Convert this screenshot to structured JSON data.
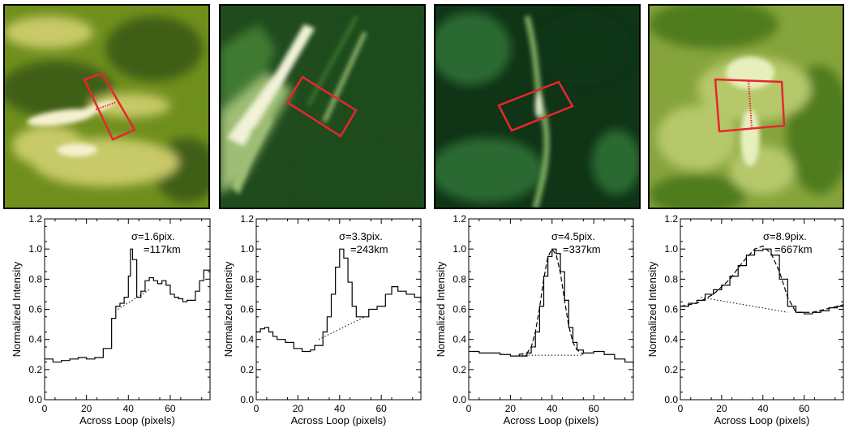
{
  "panels": [
    {
      "sigma_label": "σ=1.6pix.",
      "width_label": "=117km",
      "image": {
        "colors": [
          "#3f5f12",
          "#6f8f1d",
          "#c8c968",
          "#f5f1cf"
        ]
      }
    },
    {
      "sigma_label": "σ=3.3pix.",
      "width_label": "=243km",
      "image": {
        "colors": [
          "#1f4b1d",
          "#3f7a33",
          "#9fbe74",
          "#f1f2d8"
        ]
      }
    },
    {
      "sigma_label": "σ=4.5pix.",
      "width_label": "=337km",
      "image": {
        "colors": [
          "#0f3416",
          "#2c6a31",
          "#82af63",
          "#e8efcf"
        ]
      }
    },
    {
      "sigma_label": "σ=8.9pix.",
      "width_label": "=667km",
      "image": {
        "colors": [
          "#4f7b1f",
          "#86a43c",
          "#b6c86b",
          "#e8efbf"
        ]
      }
    }
  ],
  "colors": {
    "roi_box": "#e8262e",
    "axis": "#000000"
  },
  "chart_data": [
    {
      "type": "line",
      "xlabel": "Across Loop (pixels)",
      "ylabel": "Normalized Intensity",
      "xlim": [
        0,
        79
      ],
      "ylim": [
        0,
        1.2
      ],
      "x_ticks": [
        0,
        20,
        40,
        60
      ],
      "y_ticks": [
        "0.0",
        "0.2",
        "0.4",
        "0.6",
        "0.8",
        "1.0",
        "1.2"
      ],
      "x": [
        0,
        4,
        8,
        12,
        16,
        20,
        24,
        28,
        32,
        34,
        36,
        38,
        40,
        41,
        42,
        44,
        46,
        48,
        50,
        52,
        54,
        56,
        58,
        60,
        62,
        64,
        66,
        68,
        70,
        72,
        74,
        76,
        79
      ],
      "y": [
        0.27,
        0.25,
        0.26,
        0.27,
        0.28,
        0.27,
        0.28,
        0.34,
        0.54,
        0.62,
        0.64,
        0.68,
        0.82,
        1.0,
        0.93,
        0.68,
        0.72,
        0.79,
        0.81,
        0.79,
        0.77,
        0.79,
        0.76,
        0.7,
        0.68,
        0.67,
        0.65,
        0.66,
        0.66,
        0.72,
        0.79,
        0.86,
        0.85
      ],
      "background": {
        "x": [
          35,
          50
        ],
        "y": [
          0.6,
          0.73
        ]
      },
      "fit": null
    },
    {
      "type": "line",
      "xlabel": "Across Loop (pixels)",
      "ylabel": "Normalized Intensity",
      "xlim": [
        0,
        79
      ],
      "ylim": [
        0,
        1.2
      ],
      "x_ticks": [
        0,
        20,
        40,
        60
      ],
      "y_ticks": [
        "0.0",
        "0.2",
        "0.4",
        "0.6",
        "0.8",
        "1.0",
        "1.2"
      ],
      "x": [
        0,
        2,
        4,
        6,
        8,
        10,
        14,
        18,
        22,
        26,
        28,
        32,
        34,
        36,
        38,
        40,
        42,
        44,
        46,
        48,
        50,
        54,
        58,
        62,
        65,
        68,
        72,
        76,
        79
      ],
      "y": [
        0.45,
        0.47,
        0.48,
        0.45,
        0.42,
        0.4,
        0.38,
        0.34,
        0.32,
        0.33,
        0.36,
        0.45,
        0.55,
        0.7,
        0.88,
        1.0,
        0.94,
        0.78,
        0.62,
        0.55,
        0.55,
        0.6,
        0.62,
        0.7,
        0.75,
        0.72,
        0.7,
        0.68,
        0.64
      ],
      "background": {
        "x": [
          30,
          52
        ],
        "y": [
          0.4,
          0.55
        ]
      },
      "fit": null
    },
    {
      "type": "line",
      "xlabel": "Across Loop (pixels)",
      "ylabel": "Normalized Intensity",
      "xlim": [
        0,
        79
      ],
      "ylim": [
        0,
        1.2
      ],
      "x_ticks": [
        0,
        20,
        40,
        60
      ],
      "y_ticks": [
        "0.0",
        "0.2",
        "0.4",
        "0.6",
        "0.8",
        "1.0",
        "1.2"
      ],
      "x": [
        0,
        5,
        10,
        15,
        20,
        25,
        28,
        30,
        32,
        34,
        36,
        38,
        40,
        42,
        44,
        46,
        48,
        50,
        52,
        55,
        60,
        65,
        70,
        75,
        79
      ],
      "y": [
        0.32,
        0.31,
        0.31,
        0.3,
        0.29,
        0.29,
        0.31,
        0.35,
        0.45,
        0.62,
        0.82,
        0.95,
        1.0,
        0.97,
        0.85,
        0.66,
        0.48,
        0.38,
        0.33,
        0.31,
        0.32,
        0.3,
        0.27,
        0.25,
        0.22
      ],
      "background": {
        "x": [
          24,
          55
        ],
        "y": [
          0.295,
          0.295
        ]
      },
      "fit": [
        [
          24,
          0.3
        ],
        [
          28,
          0.31
        ],
        [
          30,
          0.35
        ],
        [
          32,
          0.45
        ],
        [
          34,
          0.61
        ],
        [
          36,
          0.8
        ],
        [
          38,
          0.95
        ],
        [
          40,
          1.0
        ],
        [
          42,
          0.96
        ],
        [
          44,
          0.84
        ],
        [
          46,
          0.66
        ],
        [
          48,
          0.49
        ],
        [
          50,
          0.38
        ],
        [
          52,
          0.33
        ],
        [
          55,
          0.3
        ]
      ]
    },
    {
      "type": "line",
      "xlabel": "Across Loop (pixels)",
      "ylabel": "Normalized Intensity",
      "xlim": [
        0,
        79
      ],
      "ylim": [
        0,
        1.2
      ],
      "x_ticks": [
        0,
        20,
        40,
        60
      ],
      "y_ticks": [
        "0.0",
        "0.2",
        "0.4",
        "0.6",
        "0.8",
        "1.0",
        "1.2"
      ],
      "x": [
        0,
        4,
        8,
        12,
        16,
        20,
        24,
        28,
        32,
        36,
        40,
        44,
        48,
        52,
        56,
        60,
        64,
        68,
        72,
        76,
        79
      ],
      "y": [
        0.62,
        0.64,
        0.66,
        0.7,
        0.73,
        0.76,
        0.82,
        0.89,
        0.96,
        0.99,
        1.0,
        0.96,
        0.8,
        0.62,
        0.58,
        0.57,
        0.58,
        0.59,
        0.61,
        0.62,
        0.63
      ],
      "background": {
        "x": [
          10,
          52
        ],
        "y": [
          0.68,
          0.58
        ]
      },
      "fit": [
        [
          0,
          0.62
        ],
        [
          8,
          0.64
        ],
        [
          16,
          0.7
        ],
        [
          24,
          0.8
        ],
        [
          30,
          0.91
        ],
        [
          36,
          1.0
        ],
        [
          40,
          1.02
        ],
        [
          44,
          0.97
        ],
        [
          48,
          0.85
        ],
        [
          52,
          0.68
        ],
        [
          56,
          0.58
        ],
        [
          64,
          0.58
        ],
        [
          79,
          0.63
        ]
      ]
    }
  ]
}
